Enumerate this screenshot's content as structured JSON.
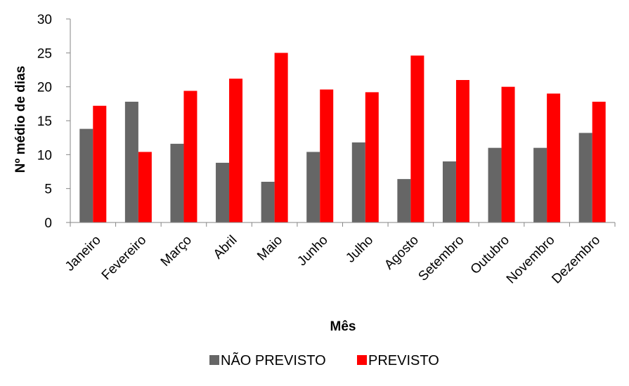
{
  "chart_data": {
    "type": "bar",
    "title": "",
    "xlabel": "Mês",
    "ylabel": "Nº médio de dias",
    "ylim": [
      0,
      30
    ],
    "yticks": [
      0,
      5,
      10,
      15,
      20,
      25,
      30
    ],
    "grid": false,
    "legend_position": "bottom",
    "categories": [
      "Janeiro",
      "Fevereiro",
      "Março",
      "Abril",
      "Maio",
      "Junho",
      "Julho",
      "Agosto",
      "Setembro",
      "Outubro",
      "Novembro",
      "Dezembro"
    ],
    "series": [
      {
        "name": "NÃO PREVISTO",
        "color": "#666666",
        "values": [
          13.8,
          17.8,
          11.6,
          8.8,
          6.0,
          10.4,
          11.8,
          6.4,
          9.0,
          11.0,
          11.0,
          13.2
        ]
      },
      {
        "name": "PREVISTO",
        "color": "#ff0000",
        "values": [
          17.2,
          10.4,
          19.4,
          21.2,
          25.0,
          19.6,
          19.2,
          24.6,
          21.0,
          20.0,
          19.0,
          17.8
        ]
      }
    ]
  }
}
